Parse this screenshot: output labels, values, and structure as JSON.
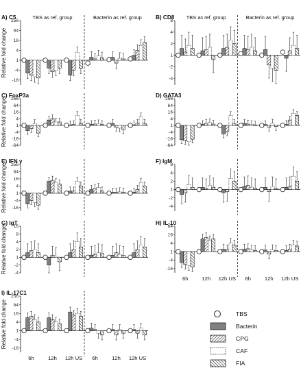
{
  "colors": {
    "tbs": "#ffffff",
    "bacterin": "#808080",
    "cpg": "#ffffff",
    "caf": "#ffffff",
    "fia": "#ffffff",
    "axis": "#222222"
  },
  "legend": [
    {
      "key": "tbs",
      "label": "TBS"
    },
    {
      "key": "bacterin",
      "label": "Bacterin"
    },
    {
      "key": "cpg",
      "label": "CPG"
    },
    {
      "key": "caf",
      "label": "CAF"
    },
    {
      "key": "fia",
      "label": "FIA"
    }
  ],
  "x_labels": [
    "6h",
    "12h",
    "12h US",
    "6h",
    "12h",
    "12h US"
  ],
  "ylabel": "Relative fold change",
  "chart_data": [
    {
      "type": "bar",
      "panel": "A",
      "title": "C5",
      "xlabel": "",
      "ylabel": "Relative fold change",
      "yscale": "log2",
      "group_labels": [
        "TBS as ref. group",
        "Bacterin as ref. group"
      ],
      "categories": [
        "6h",
        "12h",
        "12h US",
        "6h",
        "12h",
        "12h US"
      ],
      "yticks": [
        256,
        64,
        16,
        4,
        1,
        -4,
        -16
      ],
      "ylim": [
        -32,
        256
      ],
      "series": [
        {
          "name": "TBS",
          "values": [
            1,
            1,
            1,
            -1.5,
            1.1,
            1.2
          ]
        },
        {
          "name": "Bacterin",
          "values": [
            -6,
            -3,
            -8,
            1.5,
            1.5,
            2
          ]
        },
        {
          "name": "CPG",
          "values": [
            -8,
            -5,
            -4,
            1.2,
            -1.5,
            4
          ]
        },
        {
          "name": "CAF",
          "values": [
            -10,
            -4,
            3,
            1.8,
            1.3,
            8
          ]
        },
        {
          "name": "FIA",
          "values": [
            -12,
            -3,
            -3,
            1.4,
            1.2,
            12
          ]
        }
      ]
    },
    {
      "type": "bar",
      "panel": "B",
      "title": "CD8",
      "xlabel": "",
      "ylabel": "",
      "yscale": "log2",
      "group_labels": [
        "TBS as ref. group",
        "Bacterin as ref. group"
      ],
      "categories": [
        "6h",
        "12h",
        "12h US",
        "6h",
        "12h",
        "12h US"
      ],
      "yticks": [
        8,
        4,
        2,
        1,
        -2,
        -4
      ],
      "ylim": [
        -6,
        8
      ],
      "series": [
        {
          "name": "TBS",
          "values": [
            1,
            1,
            1,
            1.1,
            1,
            1.2
          ]
        },
        {
          "name": "Bacterin",
          "values": [
            1.5,
            1.3,
            1.5,
            1.5,
            1.4,
            -1.2
          ]
        },
        {
          "name": "CPG",
          "values": [
            1.2,
            1.4,
            1.6,
            1.4,
            -1.8,
            1.3
          ]
        },
        {
          "name": "CAF",
          "values": [
            1.8,
            1.6,
            2.5,
            1.6,
            -2.2,
            1.8
          ]
        },
        {
          "name": "FIA",
          "values": [
            1.5,
            -1.3,
            2,
            1.3,
            -2.5,
            1.5
          ]
        }
      ]
    },
    {
      "type": "bar",
      "panel": "C",
      "title": "FoxP3a",
      "xlabel": "",
      "ylabel": "Relative fold change",
      "yscale": "log2",
      "categories": [
        "6h",
        "12h",
        "12h US",
        "6h",
        "12h",
        "12h US"
      ],
      "yticks": [
        256,
        64,
        16,
        4,
        1,
        -4,
        -16,
        -64
      ],
      "ylim": [
        -64,
        256
      ],
      "series": [
        {
          "name": "TBS",
          "values": [
            1,
            1,
            1,
            1,
            1,
            1
          ]
        },
        {
          "name": "Bacterin",
          "values": [
            -3,
            3,
            1.1,
            1.2,
            1.5,
            1.1
          ]
        },
        {
          "name": "CPG",
          "values": [
            -2,
            4,
            1.2,
            1.3,
            -1.5,
            1.5
          ]
        },
        {
          "name": "CAF",
          "values": [
            1.5,
            2,
            8,
            1.4,
            -1.8,
            6
          ]
        },
        {
          "name": "FIA",
          "values": [
            -5,
            2,
            1.5,
            1.2,
            -2.5,
            1.5
          ]
        }
      ]
    },
    {
      "type": "bar",
      "panel": "D",
      "title": "GATA3",
      "xlabel": "",
      "ylabel": "",
      "yscale": "log2",
      "categories": [
        "6h",
        "12h",
        "12h US",
        "6h",
        "12h",
        "12h US"
      ],
      "yticks": [
        256,
        64,
        16,
        4,
        1,
        -4,
        -16,
        -64
      ],
      "ylim": [
        -64,
        256
      ],
      "series": [
        {
          "name": "TBS",
          "values": [
            1,
            1,
            1,
            1,
            1,
            1
          ]
        },
        {
          "name": "Bacterin",
          "values": [
            -20,
            1.2,
            -6,
            1.5,
            1.2,
            1.2
          ]
        },
        {
          "name": "CPG",
          "values": [
            -25,
            1.5,
            -4,
            1.3,
            -1.5,
            3
          ]
        },
        {
          "name": "CAF",
          "values": [
            -30,
            1.8,
            8,
            1.2,
            1.6,
            12
          ]
        },
        {
          "name": "FIA",
          "values": [
            -18,
            1.3,
            1.5,
            1.1,
            -1.3,
            8
          ]
        }
      ]
    },
    {
      "type": "bar",
      "panel": "E",
      "title": "IFN γ",
      "xlabel": "",
      "ylabel": "Relative fold change",
      "yscale": "log2",
      "categories": [
        "6h",
        "12h",
        "12h US",
        "6h",
        "12h",
        "12h US"
      ],
      "yticks": [
        256,
        64,
        16,
        4,
        1,
        -4,
        -16
      ],
      "ylim": [
        -32,
        256
      ],
      "series": [
        {
          "name": "TBS",
          "values": [
            1,
            1,
            1,
            1,
            1,
            1
          ]
        },
        {
          "name": "Bacterin",
          "values": [
            -8,
            10,
            1.5,
            2,
            1.2,
            1.2
          ]
        },
        {
          "name": "CPG",
          "values": [
            -4,
            12,
            1.5,
            2.5,
            1.2,
            2
          ]
        },
        {
          "name": "CAF",
          "values": [
            -6,
            8,
            10,
            3,
            1.3,
            8
          ]
        },
        {
          "name": "FIA",
          "values": [
            -10,
            6,
            4,
            1.5,
            1.2,
            4
          ]
        }
      ]
    },
    {
      "type": "bar",
      "panel": "F",
      "title": "IgM",
      "xlabel": "",
      "ylabel": "",
      "yscale": "log2",
      "categories": [
        "6h",
        "12h",
        "12h US",
        "6h",
        "12h",
        "12h US"
      ],
      "yticks": [
        8,
        4,
        2,
        1,
        -2,
        -4
      ],
      "ylim": [
        -6,
        8
      ],
      "series": [
        {
          "name": "TBS",
          "values": [
            1,
            1,
            1,
            1,
            1,
            1
          ]
        },
        {
          "name": "Bacterin",
          "values": [
            -1.5,
            1.2,
            -1.3,
            1.3,
            1.2,
            1.2
          ]
        },
        {
          "name": "CPG",
          "values": [
            -1.3,
            1.1,
            -1.2,
            1.4,
            -1.2,
            1.3
          ]
        },
        {
          "name": "CAF",
          "values": [
            1.5,
            1.4,
            2.5,
            1.2,
            1.3,
            3
          ]
        },
        {
          "name": "FIA",
          "values": [
            1.2,
            1.2,
            2,
            1.1,
            1.1,
            2
          ]
        }
      ]
    },
    {
      "type": "bar",
      "panel": "G",
      "title": "IgT",
      "xlabel": "",
      "ylabel": "Relative fold change",
      "yscale": "log2",
      "categories": [
        "6h",
        "12h",
        "12h US",
        "6h",
        "12h",
        "12h US"
      ],
      "yticks": [
        16,
        8,
        4,
        2,
        1,
        -2,
        -4
      ],
      "ylim": [
        -4,
        16
      ],
      "series": [
        {
          "name": "TBS",
          "values": [
            1,
            1,
            1,
            1,
            1,
            1
          ]
        },
        {
          "name": "Bacterin",
          "values": [
            1.5,
            -2,
            1.5,
            1.2,
            1.2,
            1.5
          ]
        },
        {
          "name": "CPG",
          "values": [
            1.8,
            1.2,
            2,
            1.3,
            1.5,
            2
          ]
        },
        {
          "name": "CAF",
          "values": [
            2,
            1.1,
            4,
            1.5,
            1.3,
            3
          ]
        },
        {
          "name": "FIA",
          "values": [
            1.5,
            -1.5,
            2.5,
            1.4,
            1.2,
            2.5
          ]
        }
      ]
    },
    {
      "type": "bar",
      "panel": "H",
      "title": "IL-10",
      "xlabel": "",
      "ylabel": "",
      "yscale": "log2",
      "categories": [
        "6h",
        "12h",
        "12h US",
        "6h",
        "12h",
        "12h US"
      ],
      "yticks": [
        64,
        16,
        4,
        1,
        -4,
        -16
      ],
      "ylim": [
        -32,
        64
      ],
      "series": [
        {
          "name": "TBS",
          "values": [
            1,
            1,
            1,
            1,
            1,
            1
          ]
        },
        {
          "name": "Bacterin",
          "values": [
            -6,
            8,
            1.5,
            1.5,
            1.3,
            1.2
          ]
        },
        {
          "name": "CPG",
          "values": [
            -8,
            10,
            1.3,
            1.6,
            -1.5,
            1.5
          ]
        },
        {
          "name": "CAF",
          "values": [
            -10,
            6,
            4,
            1.3,
            1.4,
            3
          ]
        },
        {
          "name": "FIA",
          "values": [
            -12,
            8,
            3,
            1.2,
            1.2,
            2.5
          ]
        }
      ]
    },
    {
      "type": "bar",
      "panel": "I",
      "title": "IL-17C1",
      "xlabel": "",
      "ylabel": "Relative fold change",
      "yscale": "log2",
      "categories": [
        "6h",
        "12h",
        "12h US",
        "6h",
        "12h",
        "12h US"
      ],
      "yticks": [
        256,
        64,
        16,
        4,
        1,
        -4,
        -16
      ],
      "ylim": [
        -32,
        256
      ],
      "series": [
        {
          "name": "TBS",
          "values": [
            1,
            1,
            1,
            1,
            1,
            1
          ]
        },
        {
          "name": "Bacterin",
          "values": [
            8,
            8,
            20,
            1.5,
            1.2,
            1.2
          ]
        },
        {
          "name": "CPG",
          "values": [
            10,
            6,
            12,
            1.2,
            -2,
            -1.5
          ]
        },
        {
          "name": "CAF",
          "values": [
            6,
            4,
            16,
            -1.5,
            1.2,
            1.5
          ]
        },
        {
          "name": "FIA",
          "values": [
            4,
            3,
            10,
            -2,
            -1.5,
            -2
          ]
        }
      ]
    }
  ]
}
